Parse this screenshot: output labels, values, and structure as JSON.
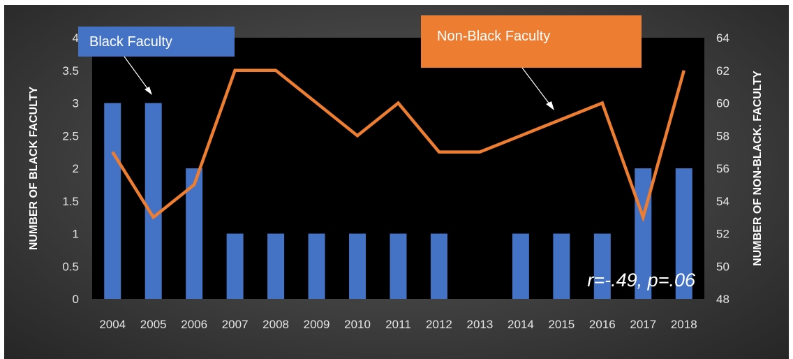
{
  "colors": {
    "bar": "#4472c4",
    "line": "#ed7d31",
    "plot_bg": "#000000"
  },
  "chart_data": {
    "type": "bar",
    "title": "",
    "categories": [
      "2004",
      "2005",
      "2006",
      "2007",
      "2008",
      "2009",
      "2010",
      "2011",
      "2012",
      "2013",
      "2014",
      "2015",
      "2016",
      "2017",
      "2018"
    ],
    "series": [
      {
        "name": "Black Faculty",
        "type": "bar",
        "axis": "left",
        "values": [
          3,
          3,
          2,
          1,
          1,
          1,
          1,
          1,
          1,
          0,
          1,
          1,
          1,
          2,
          2
        ]
      },
      {
        "name": "Non-Black Faculty",
        "type": "line",
        "axis": "right",
        "values": [
          57,
          53,
          55,
          62,
          62,
          60,
          58,
          60,
          57,
          57,
          58,
          59,
          60,
          53,
          62
        ]
      }
    ],
    "ylabel": "NUMBER OF BLACK FACULTY",
    "ylabel_right": "NUMBER OF NON-BLACK. FACULTY",
    "ylim": [
      0,
      4
    ],
    "yticks": [
      "0",
      "0.5",
      "1",
      "1.5",
      "2",
      "2.5",
      "3",
      "3.5",
      "4"
    ],
    "ylim_right": [
      48,
      64
    ],
    "yticks_right": [
      "48",
      "50",
      "52",
      "54",
      "56",
      "58",
      "60",
      "62",
      "64"
    ],
    "annotation": "r=-.49, p=.06",
    "grid": false,
    "legend": "callout labels"
  }
}
